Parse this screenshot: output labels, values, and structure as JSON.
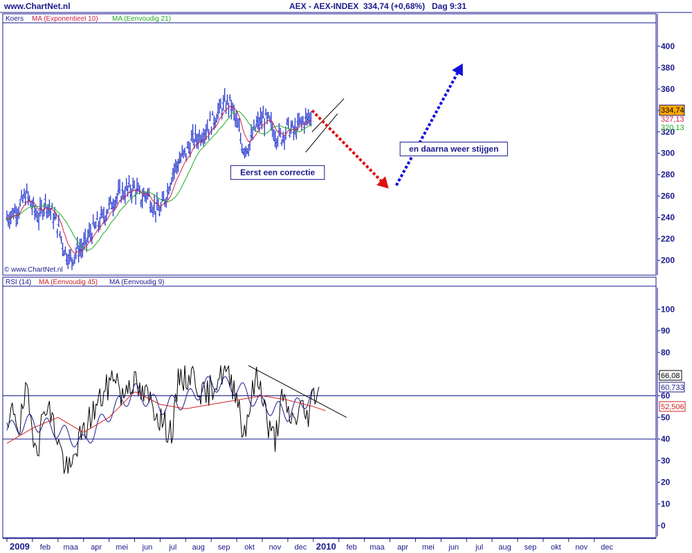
{
  "header": {
    "site": "www.ChartNet.nl",
    "title": "AEX - AEX-INDEX",
    "quote": "334,74 (+0,68%)",
    "time": "Dag  9:31"
  },
  "colors": {
    "navy": "#1a1a8c",
    "price_bars": "#2233cc",
    "ema10": "#cc2244",
    "sma21": "#22aa22",
    "rsi": "#000000",
    "rsi_ma45": "#cc2222",
    "rsi_ma9": "#1a1a8c",
    "arrow_down": "#dd1111",
    "arrow_up": "#1111dd",
    "last_price_bg": "#ffaa00"
  },
  "chart_data": [
    {
      "type": "line",
      "panel": "price",
      "legend": [
        "Koers",
        "MA (Exponentieel 10)",
        "MA (Eenvoudig 21)"
      ],
      "copyright": "© www.ChartNet.nl",
      "ylim": [
        190,
        420
      ],
      "yticks": [
        200,
        220,
        240,
        260,
        280,
        300,
        320,
        340,
        360,
        380,
        400
      ],
      "x_months": [
        "2009",
        "feb",
        "maa",
        "apr",
        "mei",
        "jun",
        "jul",
        "aug",
        "sep",
        "okt",
        "nov",
        "dec",
        "2010",
        "feb",
        "maa",
        "apr",
        "mei",
        "jun",
        "jul",
        "aug",
        "sep",
        "okt",
        "nov",
        "dec"
      ],
      "series": [
        {
          "name": "Koers",
          "style": "ohlc",
          "x": [
            0,
            0.25,
            0.5,
            0.75,
            1,
            1.25,
            1.5,
            1.75,
            2,
            2.25,
            2.5,
            2.75,
            3,
            3.25,
            3.5,
            3.75,
            4,
            4.25,
            4.5,
            4.75,
            5,
            5.25,
            5.5,
            5.75,
            6,
            6.25,
            6.5,
            6.75,
            7,
            7.25,
            7.5,
            7.75,
            8,
            8.25,
            8.5,
            8.75,
            9,
            9.25,
            9.5,
            9.75,
            10,
            10.25,
            10.5,
            10.75,
            11,
            11.25,
            11.5,
            11.75,
            11.95
          ],
          "values": [
            240,
            245,
            250,
            262,
            250,
            240,
            255,
            245,
            232,
            210,
            200,
            210,
            212,
            225,
            232,
            240,
            250,
            258,
            263,
            266,
            268,
            258,
            263,
            250,
            246,
            262,
            283,
            293,
            300,
            312,
            315,
            322,
            328,
            338,
            345,
            347,
            328,
            305,
            308,
            325,
            332,
            330,
            318,
            315,
            325,
            320,
            328,
            332,
            335
          ]
        }
      ],
      "markers": [
        {
          "label": "334,74",
          "value": 334.74
        },
        {
          "label": "327,13",
          "value": 327.13
        },
        {
          "label": "320,13",
          "value": 320.13
        }
      ],
      "annotations": [
        {
          "text": "Eerst een correctie",
          "x": 10.6,
          "y": 282
        },
        {
          "text": "en daarna weer stijgen",
          "x": 17.5,
          "y": 304
        }
      ],
      "arrows": [
        {
          "from": [
            11.95,
            340
          ],
          "to": [
            14.95,
            267
          ],
          "color": "red"
        },
        {
          "from": [
            15.25,
            270
          ],
          "to": [
            17.85,
            384
          ],
          "color": "blue"
        }
      ],
      "channel": [
        [
          11.7,
          301
        ],
        [
          12.95,
          337
        ],
        [
          11.95,
          320
        ],
        [
          13.2,
          351
        ]
      ]
    },
    {
      "type": "line",
      "panel": "rsi",
      "legend": [
        "RSI (14)",
        "MA (Eenvoudig 45)",
        "MA (Eenvoudig 9)"
      ],
      "ylim": [
        -5,
        110
      ],
      "yticks": [
        0,
        10,
        20,
        30,
        40,
        50,
        60,
        70,
        80,
        90,
        100
      ],
      "hlines": [
        40,
        60
      ],
      "series": [
        {
          "name": "RSI (14)",
          "x": [
            0,
            0.25,
            0.5,
            0.75,
            1,
            1.25,
            1.5,
            1.75,
            2,
            2.25,
            2.5,
            2.75,
            3,
            3.25,
            3.5,
            3.75,
            4,
            4.25,
            4.5,
            4.75,
            5,
            5.25,
            5.5,
            5.75,
            6,
            6.25,
            6.5,
            6.75,
            7,
            7.25,
            7.5,
            7.75,
            8,
            8.25,
            8.5,
            8.75,
            9,
            9.25,
            9.5,
            9.75,
            10,
            10.25,
            10.5,
            10.75,
            11,
            11.25,
            11.5,
            11.75,
            12,
            12.25
          ],
          "values": [
            41,
            55,
            45,
            62,
            44,
            38,
            58,
            50,
            40,
            28,
            24,
            38,
            42,
            50,
            55,
            60,
            65,
            72,
            58,
            67,
            66,
            60,
            60,
            55,
            50,
            45,
            44,
            70,
            68,
            70,
            65,
            58,
            64,
            68,
            72,
            66,
            63,
            42,
            55,
            68,
            63,
            44,
            40,
            58,
            52,
            48,
            55,
            50,
            60,
            66
          ]
        },
        {
          "name": "MA (Eenvoudig 45)",
          "x": [
            0,
            1,
            2,
            3,
            4,
            5,
            6,
            7,
            8,
            9,
            10,
            11,
            12,
            12.5
          ],
          "values": [
            38,
            45,
            50,
            43,
            50,
            62,
            56,
            54,
            56,
            58,
            60,
            58,
            55,
            53
          ]
        },
        {
          "name": "MA (Eenvoudig 9)",
          "x": [
            0,
            1,
            2,
            3,
            4,
            5,
            6,
            7,
            8,
            9,
            10,
            11,
            12
          ],
          "values": [
            44,
            48,
            44,
            38,
            52,
            62,
            55,
            58,
            66,
            64,
            56,
            52,
            60.7
          ]
        }
      ],
      "trendline": [
        [
          9.45,
          74
        ],
        [
          13.3,
          50
        ]
      ],
      "markers": [
        {
          "label": "66,08",
          "value": 66.08
        },
        {
          "label": "60,733",
          "value": 60.733
        },
        {
          "label": "52,506",
          "value": 52.506
        }
      ]
    }
  ]
}
